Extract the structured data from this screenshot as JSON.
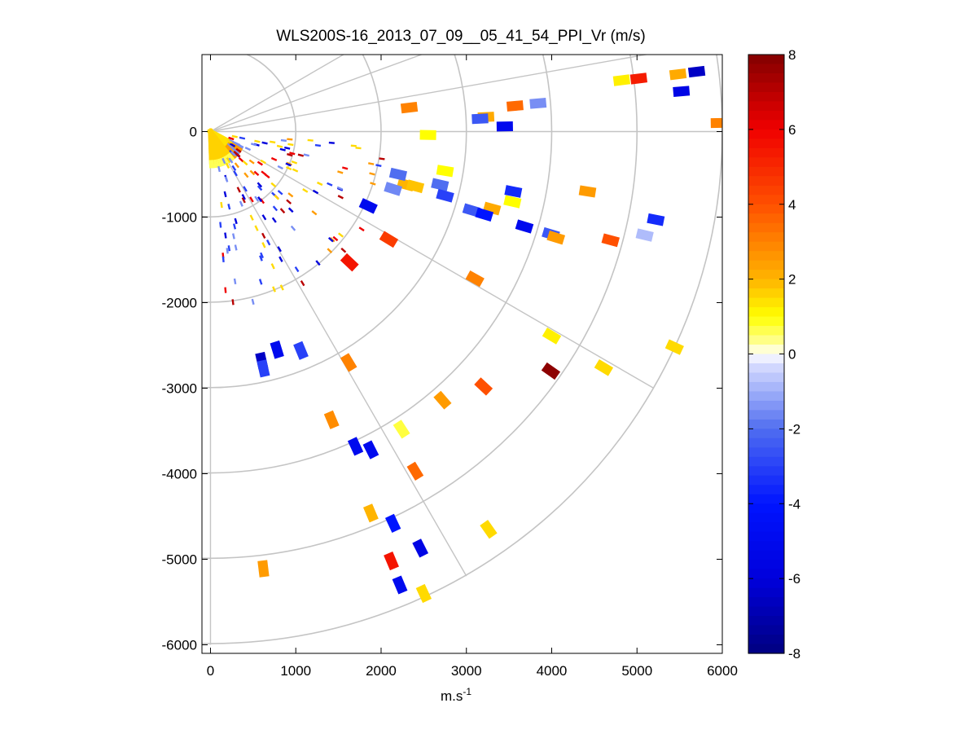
{
  "chart_data": {
    "type": "scatter",
    "title": "WLS200S-16_2013_07_09__05_41_54_PPI_Vr (m/s)",
    "xlabel": "m.s",
    "xlabel_superscript": "-1",
    "ylabel": "",
    "xlim": [
      -100,
      6000
    ],
    "ylim": [
      -6100,
      900
    ],
    "x_ticks": [
      0,
      1000,
      2000,
      3000,
      4000,
      5000,
      6000
    ],
    "x_tick_labels": [
      "0",
      "1000",
      "2000",
      "3000",
      "4000",
      "5000",
      "6000"
    ],
    "y_ticks": [
      0,
      -1000,
      -2000,
      -3000,
      -4000,
      -5000,
      -6000
    ],
    "y_tick_labels": [
      "0",
      "-1000",
      "-2000",
      "-3000",
      "-4000",
      "-5000",
      "-6000"
    ],
    "polar_grid": {
      "radii": [
        1000,
        2000,
        3000,
        4000,
        5000,
        6000
      ],
      "bearings_deg": [
        60,
        70,
        80,
        90,
        120,
        150,
        180
      ]
    },
    "colorbar": {
      "min": -8,
      "max": 8,
      "ticks": [
        8,
        6,
        4,
        2,
        0,
        -2,
        -4,
        -6,
        -8
      ],
      "tick_labels": [
        "8",
        "6",
        "4",
        "2",
        "0",
        "-2",
        "-4",
        "-6",
        "-8"
      ]
    },
    "points": [
      {
        "x": 4820,
        "y": 600,
        "v": 1.2
      },
      {
        "x": 5020,
        "y": 620,
        "v": 5.3
      },
      {
        "x": 5480,
        "y": 670,
        "v": 2.2
      },
      {
        "x": 5700,
        "y": 700,
        "v": -6.5
      },
      {
        "x": 5520,
        "y": 470,
        "v": -5.5
      },
      {
        "x": 5960,
        "y": 100,
        "v": 3.0
      },
      {
        "x": 3840,
        "y": 330,
        "v": -1.5
      },
      {
        "x": 3570,
        "y": 300,
        "v": 3.5
      },
      {
        "x": 3230,
        "y": 170,
        "v": 2.2
      },
      {
        "x": 3160,
        "y": 150,
        "v": -2.5
      },
      {
        "x": 3450,
        "y": 60,
        "v": -5.0
      },
      {
        "x": 2330,
        "y": 280,
        "v": 3.0
      },
      {
        "x": 2550,
        "y": -40,
        "v": 1.0
      },
      {
        "x": 2750,
        "y": -460,
        "v": 1.0
      },
      {
        "x": 2290,
        "y": -620,
        "v": 2.0
      },
      {
        "x": 2400,
        "y": -640,
        "v": 1.8
      },
      {
        "x": 2200,
        "y": -500,
        "v": -2.0
      },
      {
        "x": 2140,
        "y": -670,
        "v": -1.6
      },
      {
        "x": 2690,
        "y": -620,
        "v": -2.0
      },
      {
        "x": 2750,
        "y": -750,
        "v": -3.0
      },
      {
        "x": 3550,
        "y": -700,
        "v": -3.5
      },
      {
        "x": 3540,
        "y": -820,
        "v": 1.0
      },
      {
        "x": 3300,
        "y": -900,
        "v": 2.2
      },
      {
        "x": 3060,
        "y": -920,
        "v": -2.5
      },
      {
        "x": 3210,
        "y": -970,
        "v": -4.0
      },
      {
        "x": 3680,
        "y": -1110,
        "v": -5.0
      },
      {
        "x": 3990,
        "y": -1200,
        "v": -2.5
      },
      {
        "x": 4050,
        "y": -1240,
        "v": 2.5
      },
      {
        "x": 4420,
        "y": -700,
        "v": 2.5
      },
      {
        "x": 4690,
        "y": -1270,
        "v": 4.0
      },
      {
        "x": 5090,
        "y": -1210,
        "v": -0.8
      },
      {
        "x": 5220,
        "y": -1030,
        "v": -3.5
      },
      {
        "x": 1850,
        "y": -870,
        "v": -5.0
      },
      {
        "x": 2090,
        "y": -1260,
        "v": 4.5
      },
      {
        "x": 1630,
        "y": -1530,
        "v": 5.5
      },
      {
        "x": 3100,
        "y": -1720,
        "v": 3.0
      },
      {
        "x": 4000,
        "y": -2390,
        "v": 1.2
      },
      {
        "x": 3990,
        "y": -2800,
        "v": 7.8
      },
      {
        "x": 4610,
        "y": -2760,
        "v": 1.5
      },
      {
        "x": 5440,
        "y": -2520,
        "v": 1.5
      },
      {
        "x": 600,
        "y": -2680,
        "v": -6.5
      },
      {
        "x": 620,
        "y": -2770,
        "v": -3.0
      },
      {
        "x": 780,
        "y": -2550,
        "v": -5.0
      },
      {
        "x": 1060,
        "y": -2560,
        "v": -3.0
      },
      {
        "x": 1620,
        "y": -2700,
        "v": 3.0
      },
      {
        "x": 3200,
        "y": -2980,
        "v": 4.0
      },
      {
        "x": 2720,
        "y": -3140,
        "v": 2.5
      },
      {
        "x": 1420,
        "y": -3370,
        "v": 2.8
      },
      {
        "x": 2240,
        "y": -3480,
        "v": 0.7
      },
      {
        "x": 1700,
        "y": -3680,
        "v": -5.0
      },
      {
        "x": 1880,
        "y": -3720,
        "v": -5.0
      },
      {
        "x": 2400,
        "y": -3970,
        "v": 3.5
      },
      {
        "x": 1880,
        "y": -4460,
        "v": 2.0
      },
      {
        "x": 2140,
        "y": -4580,
        "v": -4.0
      },
      {
        "x": 3260,
        "y": -4650,
        "v": 1.5
      },
      {
        "x": 2460,
        "y": -4870,
        "v": -5.5
      },
      {
        "x": 2120,
        "y": -5020,
        "v": 5.5
      },
      {
        "x": 2220,
        "y": -5300,
        "v": -5.0
      },
      {
        "x": 2500,
        "y": -5400,
        "v": 1.5
      },
      {
        "x": 620,
        "y": -5110,
        "v": 2.5
      }
    ]
  }
}
